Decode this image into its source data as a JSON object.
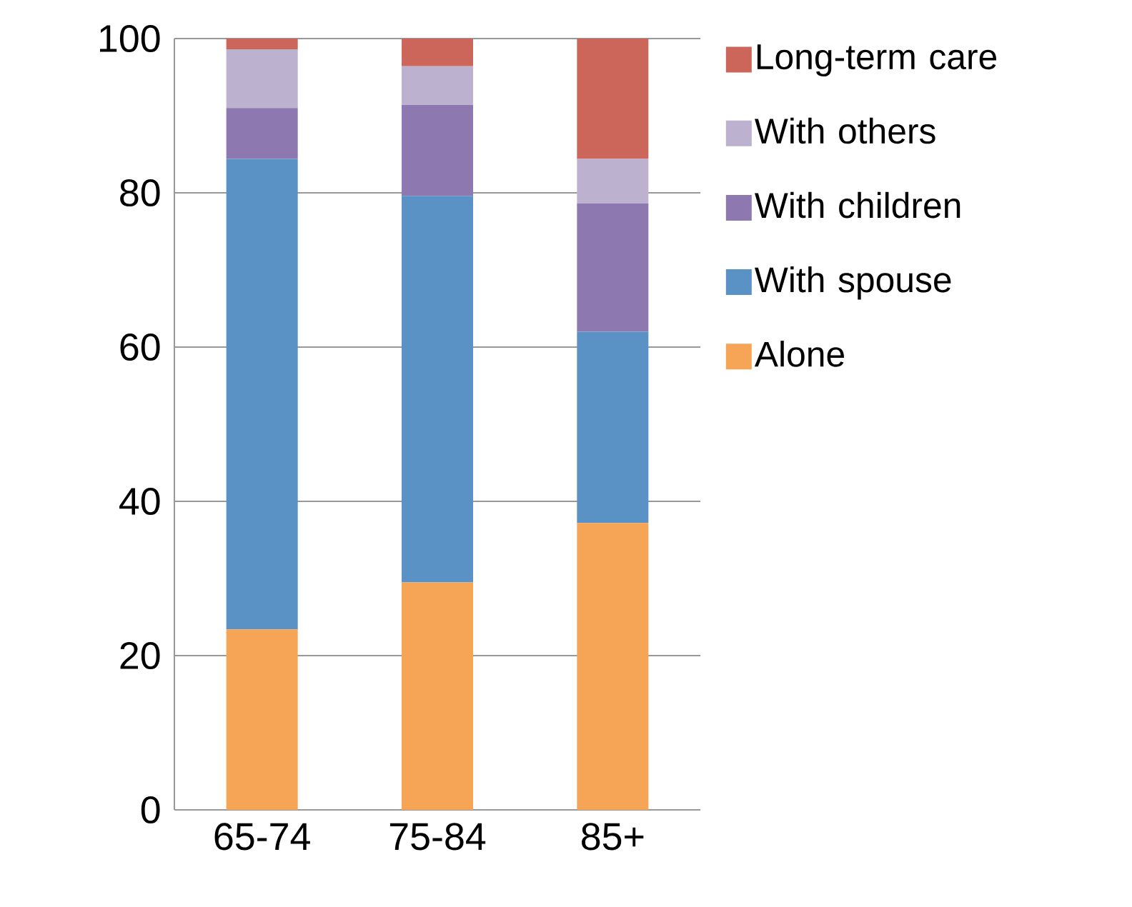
{
  "chart_data": {
    "type": "bar",
    "stacked": true,
    "categories": [
      "65-74",
      "75-84",
      "85+"
    ],
    "series": [
      {
        "name": "Alone",
        "color": "#f6a557",
        "values": [
          23.4,
          29.5,
          37.2
        ]
      },
      {
        "name": "With spouse",
        "color": "#5b92c6",
        "values": [
          61.0,
          50.1,
          24.8
        ]
      },
      {
        "name": "With children",
        "color": "#8e78b0",
        "values": [
          6.6,
          11.8,
          16.6
        ]
      },
      {
        "name": "With others",
        "color": "#bdb1d0",
        "values": [
          7.6,
          5.0,
          5.8
        ]
      },
      {
        "name": "Long-term care",
        "color": "#cc665a",
        "values": [
          1.4,
          3.6,
          15.6
        ]
      }
    ],
    "ylim": [
      0,
      100
    ],
    "yticks": [
      0,
      20,
      40,
      60,
      80,
      100
    ],
    "grid": "y",
    "legend": "right"
  }
}
